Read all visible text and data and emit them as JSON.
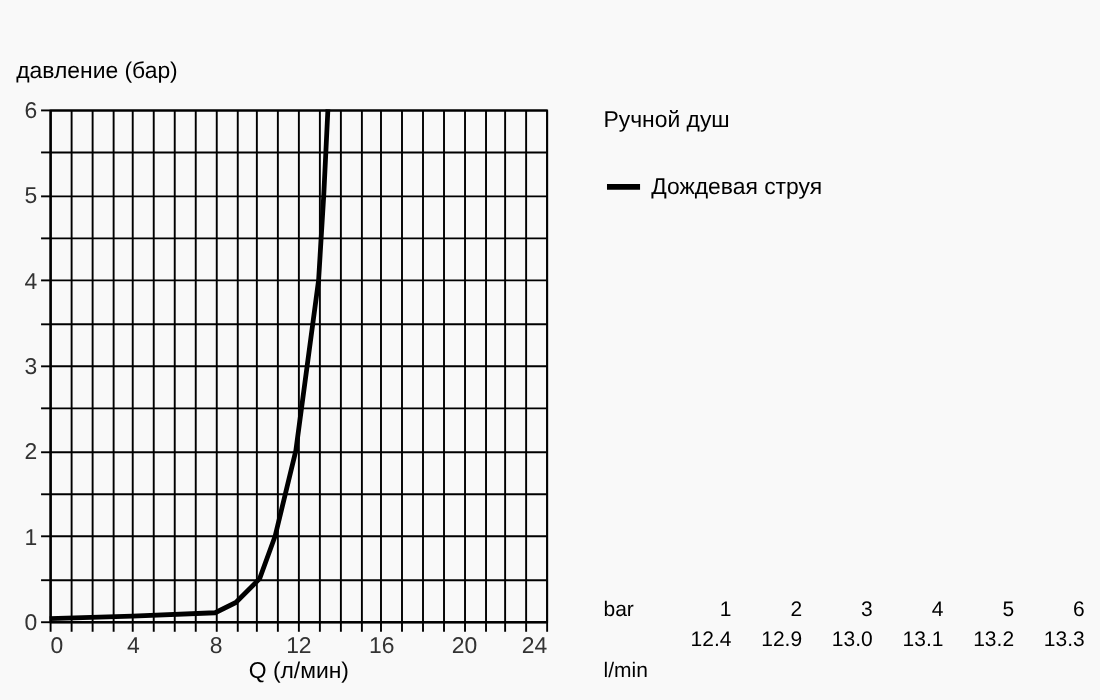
{
  "chart_data": {
    "type": "line",
    "xlabel": "Q (л/мин)",
    "ylabel": "давление (бар)",
    "legend_title": "Ручной душ",
    "series": [
      {
        "name": "Дождевая струя",
        "color": "#000000",
        "x": [
          0,
          4,
          8,
          9,
          10.15,
          10.9,
          11.9,
          12.45,
          13.0,
          13.25,
          13.45
        ],
        "values": [
          0.03,
          0.06,
          0.1,
          0.22,
          0.5,
          1.0,
          2.0,
          3.0,
          4.0,
          5.0,
          6.0
        ]
      }
    ],
    "xlim": [
      0,
      24
    ],
    "ylim": [
      0,
      6
    ],
    "xticks": [
      0,
      {
        "value": 1,
        "label": null
      },
      {
        "value": 2,
        "label": null
      },
      {
        "value": 3,
        "label": null
      },
      4,
      {
        "value": 5,
        "label": null
      },
      {
        "value": 6,
        "label": null
      },
      {
        "value": 7,
        "label": null
      },
      8,
      {
        "value": 9,
        "label": null
      },
      {
        "value": 10,
        "label": null
      },
      {
        "value": 11,
        "label": null
      },
      12,
      {
        "value": 13,
        "label": null
      },
      {
        "value": 14,
        "label": null
      },
      {
        "value": 15,
        "label": null
      },
      16,
      {
        "value": 17,
        "label": null
      },
      {
        "value": 18,
        "label": null
      },
      {
        "value": 19,
        "label": null
      },
      20,
      {
        "value": 21,
        "label": null
      },
      {
        "value": 22,
        "label": null
      },
      {
        "value": 23,
        "label": null
      },
      24
    ],
    "yticks": [
      0,
      {
        "value": 0.5,
        "label": null
      },
      1,
      {
        "value": 1.5,
        "label": null
      },
      2,
      {
        "value": 2.5,
        "label": null
      },
      3,
      {
        "value": 3.5,
        "label": null
      },
      4,
      {
        "value": 4.5,
        "label": null
      },
      5,
      {
        "value": 5.5,
        "label": null
      },
      6
    ],
    "grid": true,
    "legend": "top right",
    "line_style": "solid",
    "marker": "none",
    "annotations": [
      "bar",
      "1",
      "2",
      "3",
      "4",
      "5",
      "6",
      "l/min",
      "12.4",
      "12.9",
      "13.0",
      "13.1",
      "13.2",
      "13.3"
    ]
  }
}
